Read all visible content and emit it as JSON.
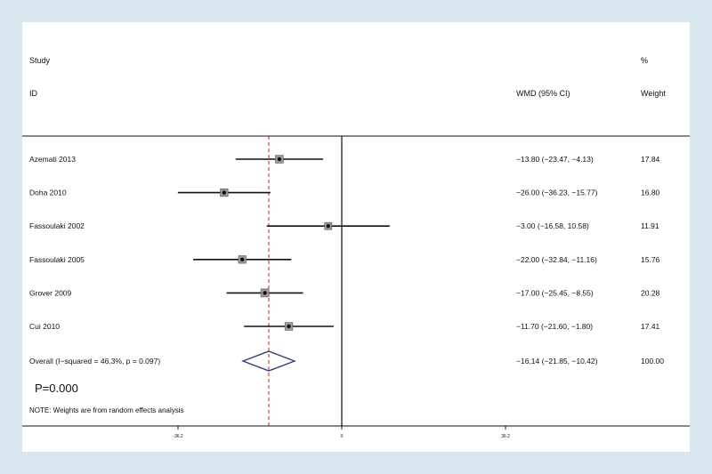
{
  "header": {
    "study_line1": "Study",
    "study_line2": "ID",
    "effect_label": "WMD (95% CI)",
    "weight_line1": "%",
    "weight_line2": "Weight"
  },
  "chart_data": {
    "type": "forest",
    "measure": "WMD",
    "x_ticks": [
      "-36.2",
      "0",
      "36.2"
    ],
    "xlim": [
      -60,
      60
    ],
    "null_line": 0,
    "overall_line": -16.14,
    "studies": [
      {
        "name": "Azemati 2013",
        "estimate": -13.8,
        "lower": -23.47,
        "upper": -4.13,
        "ci_text": "−13.80 (−23.47, −4.13)",
        "weight": 17.84,
        "weight_text": "17.84"
      },
      {
        "name": "Doha 2010",
        "estimate": -26.0,
        "lower": -36.23,
        "upper": -15.77,
        "ci_text": "−26.00 (−36.23, −15.77)",
        "weight": 16.8,
        "weight_text": "16.80"
      },
      {
        "name": "Fassoulaki 2002",
        "estimate": -3.0,
        "lower": -16.58,
        "upper": 10.58,
        "ci_text": "−3.00 (−16.58, 10.58)",
        "weight": 11.91,
        "weight_text": "11.91"
      },
      {
        "name": "Fassoulaki 2005",
        "estimate": -22.0,
        "lower": -32.84,
        "upper": -11.16,
        "ci_text": "−22.00 (−32.84, −11.16)",
        "weight": 15.76,
        "weight_text": "15.76"
      },
      {
        "name": "Grover 2009",
        "estimate": -17.0,
        "lower": -25.45,
        "upper": -8.55,
        "ci_text": "−17.00 (−25.45, −8.55)",
        "weight": 20.28,
        "weight_text": "20.28"
      },
      {
        "name": "Cui 2010",
        "estimate": -11.7,
        "lower": -21.6,
        "upper": -1.8,
        "ci_text": "−11.70 (−21.60, −1.80)",
        "weight": 17.41,
        "weight_text": "17.41"
      }
    ],
    "overall": {
      "label": "Overall  (I−squared = 46.3%, p = 0.097)",
      "estimate": -16.14,
      "lower": -21.85,
      "upper": -10.42,
      "ci_text": "−16.14 (−21.85, −10.42)",
      "weight_text": "100.00"
    },
    "p_value_text": "P=0.000",
    "note": "NOTE: Weights are from random effects analysis",
    "colors": {
      "overall_line": "#cc2222",
      "lines": "#111111",
      "marker_box": "#9a9a9a"
    }
  }
}
